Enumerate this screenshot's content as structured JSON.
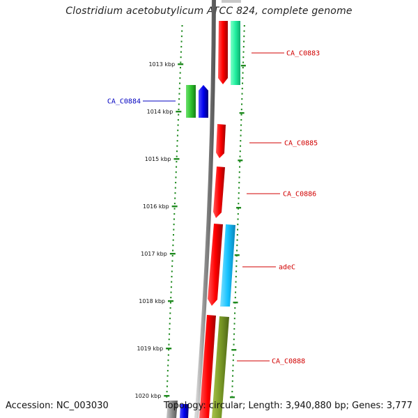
{
  "title": "Clostridium acetobutylicum ATCC 824, complete genome",
  "footer": {
    "accession_label": "Accession: NC_003030",
    "info_label": "Topology: circular; Length: 3,940,880 bp; Genes: 3,777"
  },
  "colors": {
    "backbone": "#8c8c8c",
    "tick": "#1f8a1f",
    "label_forward": "#d10000",
    "label_reverse": "#0000c0"
  },
  "ticks": [
    {
      "label": "1013 kbp",
      "kbp": 1013
    },
    {
      "label": "1014 kbp",
      "kbp": 1014
    },
    {
      "label": "1015 kbp",
      "kbp": 1015
    },
    {
      "label": "1016 kbp",
      "kbp": 1016
    },
    {
      "label": "1017 kbp",
      "kbp": 1017
    },
    {
      "label": "1018 kbp",
      "kbp": 1018
    },
    {
      "label": "1019 kbp",
      "kbp": 1019
    },
    {
      "label": "1020 kbp",
      "kbp": 1020
    }
  ],
  "genes": [
    {
      "label": "CA_C0883",
      "strand": "forward"
    },
    {
      "label": "CA_C0884",
      "strand": "reverse"
    },
    {
      "label": "CA_C0885",
      "strand": "forward"
    },
    {
      "label": "CA_C0886",
      "strand": "forward"
    },
    {
      "label": "adeC",
      "strand": "forward"
    },
    {
      "label": "CA_C0888",
      "strand": "forward"
    }
  ]
}
